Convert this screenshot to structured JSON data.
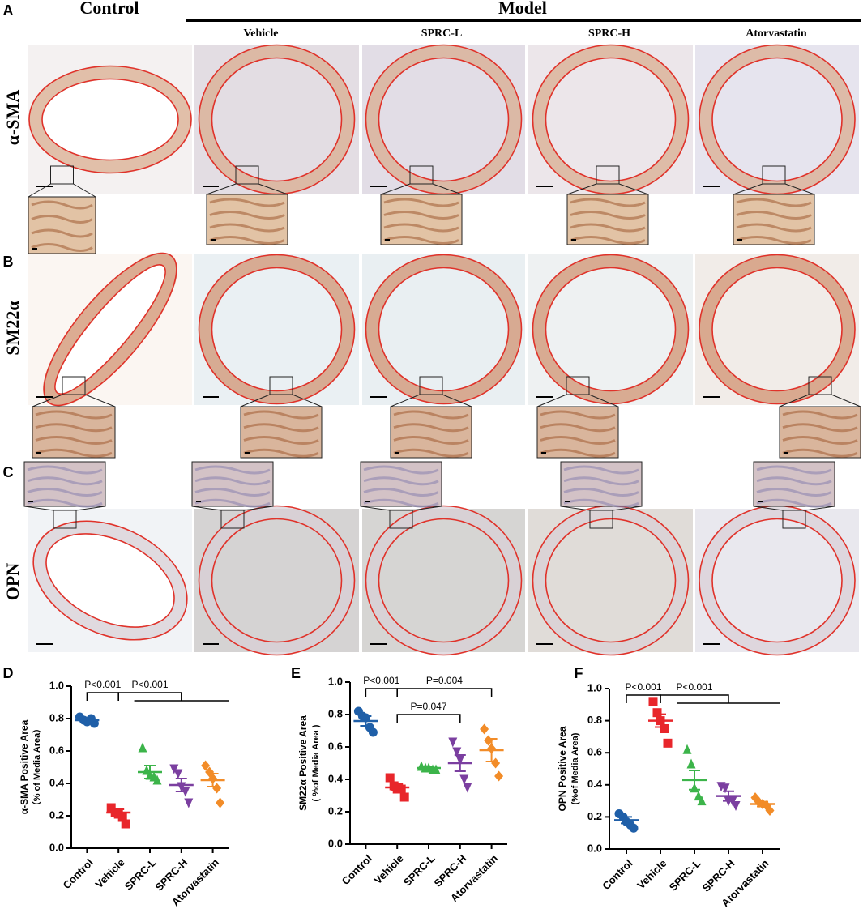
{
  "figure": {
    "panel_labels": [
      "A",
      "B",
      "C",
      "D",
      "E",
      "F"
    ],
    "group_header": "Control",
    "model_header": "Model",
    "model_groups": [
      "Vehicle",
      "SPRC-L",
      "SPRC-H",
      "Atorvastatin"
    ],
    "row_labels": [
      "α-SMA",
      "SM22α",
      "OPN"
    ]
  },
  "chart_data": [
    {
      "type": "dot-plot",
      "y_label": "α-SMA Positive Area",
      "y_sublabel": "（% of Media Area）",
      "categories": [
        "Control",
        "Vehicle",
        "SPRC-L",
        "SPRC-H",
        "Atorvastatin"
      ],
      "groups": [
        {
          "color": "#1f5fa8",
          "marker": "circle",
          "values": [
            0.81,
            0.79,
            0.78,
            0.8,
            0.77
          ],
          "mean": 0.79,
          "sem": 0.01
        },
        {
          "color": "#e8262b",
          "marker": "square",
          "values": [
            0.25,
            0.22,
            0.21,
            0.19,
            0.15
          ],
          "mean": 0.22,
          "sem": 0.02
        },
        {
          "color": "#3cb44a",
          "marker": "triangle-up",
          "values": [
            0.62,
            0.48,
            0.45,
            0.44,
            0.42
          ],
          "mean": 0.47,
          "sem": 0.04
        },
        {
          "color": "#7b3fa0",
          "marker": "triangle-down",
          "values": [
            0.49,
            0.46,
            0.38,
            0.35,
            0.28
          ],
          "mean": 0.39,
          "sem": 0.04
        },
        {
          "color": "#f28c28",
          "marker": "diamond",
          "values": [
            0.51,
            0.47,
            0.43,
            0.37,
            0.28
          ],
          "mean": 0.42,
          "sem": 0.04
        }
      ],
      "comparisons": [
        {
          "label": "P<0.001",
          "left": 0,
          "right": [
            1
          ]
        },
        {
          "label": "P<0.001",
          "left": 1,
          "right": [
            2,
            3,
            4
          ]
        }
      ],
      "ylim": [
        0,
        1.0
      ],
      "yticks": [
        {
          "value": 0,
          "label": "0.0"
        },
        0.2,
        0.4,
        0.6,
        0.8,
        {
          "value": 1.0,
          "label": "1.0"
        }
      ]
    },
    {
      "type": "dot-plot",
      "y_label": "SM22α Positive Area",
      "y_sublabel": "( %of Media Area )",
      "categories": [
        "Control",
        "Vehicle",
        "SPRC-L",
        "SPRC-H",
        "Atorvastatin"
      ],
      "groups": [
        {
          "color": "#1f5fa8",
          "marker": "circle",
          "values": [
            0.82,
            0.79,
            0.78,
            0.72,
            0.69
          ],
          "mean": 0.76,
          "sem": 0.03
        },
        {
          "color": "#e8262b",
          "marker": "square",
          "values": [
            0.41,
            0.36,
            0.34,
            0.34,
            0.29
          ],
          "mean": 0.35,
          "sem": 0.02
        },
        {
          "color": "#3cb44a",
          "marker": "triangle-up",
          "values": [
            0.48,
            0.47,
            0.47,
            0.46,
            0.46
          ],
          "mean": 0.47,
          "sem": 0.005
        },
        {
          "color": "#7b3fa0",
          "marker": "triangle-down",
          "values": [
            0.63,
            0.57,
            0.52,
            0.4,
            0.35
          ],
          "mean": 0.5,
          "sem": 0.05
        },
        {
          "color": "#f28c28",
          "marker": "diamond",
          "values": [
            0.71,
            0.64,
            0.59,
            0.5,
            0.42
          ],
          "mean": 0.58,
          "sem": 0.07
        }
      ],
      "comparisons": [
        {
          "label": "P<0.001",
          "left": 0,
          "right": [
            1
          ]
        },
        {
          "label": "P=0.004",
          "left": 1,
          "right": [
            4
          ]
        },
        {
          "label": "P=0.047",
          "left": 1,
          "right": [
            3
          ]
        }
      ],
      "ylim": [
        0,
        1.0
      ],
      "yticks": [
        {
          "value": 0,
          "label": "0.0"
        },
        0.2,
        0.4,
        0.6,
        0.8,
        {
          "value": 1.0,
          "label": "1.0"
        }
      ]
    },
    {
      "type": "dot-plot",
      "y_label": "OPN Positive Area",
      "y_sublabel": "(%of Media Area)",
      "categories": [
        "Control",
        "Vehicle",
        "SPRC-L",
        "SPRC-H",
        "Atorvastatin"
      ],
      "groups": [
        {
          "color": "#1f5fa8",
          "marker": "circle",
          "values": [
            0.22,
            0.2,
            0.17,
            0.15,
            0.13
          ],
          "mean": 0.18,
          "sem": 0.02
        },
        {
          "color": "#e8262b",
          "marker": "square",
          "values": [
            0.92,
            0.85,
            0.8,
            0.75,
            0.66
          ],
          "mean": 0.8,
          "sem": 0.04
        },
        {
          "color": "#3cb44a",
          "marker": "triangle-up",
          "values": [
            0.62,
            0.53,
            0.38,
            0.33,
            0.3
          ],
          "mean": 0.43,
          "sem": 0.06
        },
        {
          "color": "#7b3fa0",
          "marker": "triangle-down",
          "values": [
            0.39,
            0.38,
            0.3,
            0.3,
            0.27
          ],
          "mean": 0.33,
          "sem": 0.03
        },
        {
          "color": "#f28c28",
          "marker": "diamond",
          "values": [
            0.32,
            0.29,
            0.28,
            0.27,
            0.24
          ],
          "mean": 0.28,
          "sem": 0.015
        }
      ],
      "comparisons": [
        {
          "label": "P<0.001",
          "left": 0,
          "right": [
            1
          ]
        },
        {
          "label": "P<0.001",
          "left": 1,
          "right": [
            2,
            3,
            4
          ]
        }
      ],
      "ylim": [
        0,
        1.0
      ],
      "yticks": [
        {
          "value": 0,
          "label": "0.0"
        },
        0.2,
        0.4,
        0.6,
        0.8,
        {
          "value": 1.0,
          "label": "1.0"
        }
      ]
    }
  ]
}
